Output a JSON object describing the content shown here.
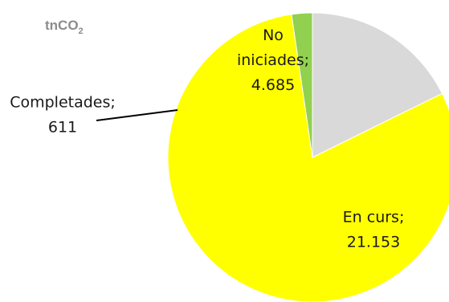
{
  "chart_data": {
    "type": "pie",
    "unit_label": {
      "main": "tnCO",
      "subscript": "2"
    },
    "slices": [
      {
        "label_lines": [
          "No",
          "iniciades;"
        ],
        "value": 4685,
        "value_label": "4.685",
        "color": "#d9d9d9"
      },
      {
        "label_lines": [
          "En curs;"
        ],
        "value": 21153,
        "value_label": "21.153",
        "color": "#ffff00"
      },
      {
        "label_lines": [
          "Completades;"
        ],
        "value": 611,
        "value_label": "611",
        "color": "#92d050"
      }
    ],
    "start_angle_deg": 0,
    "direction": "clockwise",
    "legend": "none",
    "data_labels": "category-and-value"
  }
}
